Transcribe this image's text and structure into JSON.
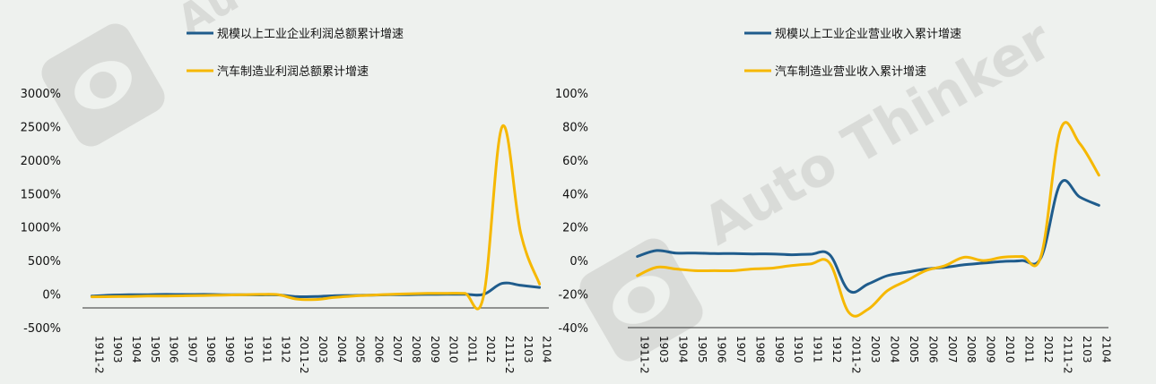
{
  "chart_data": [
    {
      "type": "line",
      "categories": [
        "1911-2",
        "1903",
        "1904",
        "1905",
        "1906",
        "1907",
        "1908",
        "1909",
        "1910",
        "1911",
        "1912",
        "2011-2",
        "2003",
        "2004",
        "2005",
        "2006",
        "2007",
        "2008",
        "2009",
        "2010",
        "2011",
        "2012",
        "2111-2",
        "2103",
        "2104"
      ],
      "ylim": [
        -500,
        3000
      ],
      "ytick_labels": [
        "3000%",
        "2500%",
        "2000%",
        "1500%",
        "1000%",
        "500%",
        "0%",
        "-500%"
      ],
      "ytick_values": [
        3000,
        2500,
        2000,
        1500,
        1000,
        500,
        0,
        -500
      ],
      "legend_position": "top-center",
      "series": [
        {
          "name": "规模以上工业企业利润总额累计增速",
          "color": "#1f5c8c",
          "values": [
            -30,
            -15,
            -10,
            -8,
            -5,
            -6,
            -5,
            -8,
            -10,
            -12,
            -12,
            -38,
            -36,
            -25,
            -20,
            -15,
            -10,
            -8,
            -5,
            -3,
            -2,
            -3,
            160,
            130,
            100
          ]
        },
        {
          "name": "汽车制造业利润总额累计增速",
          "color": "#f6b800",
          "values": [
            -40,
            -38,
            -35,
            -30,
            -28,
            -25,
            -20,
            -15,
            -10,
            -5,
            -10,
            -75,
            -80,
            -50,
            -30,
            -15,
            -5,
            5,
            10,
            12,
            10,
            -30,
            2500,
            900,
            150
          ]
        }
      ]
    },
    {
      "type": "line",
      "categories": [
        "1911-2",
        "1903",
        "1904",
        "1905",
        "1906",
        "1907",
        "1908",
        "1909",
        "1910",
        "1911",
        "1912",
        "2011-2",
        "2003",
        "2004",
        "2005",
        "2006",
        "2007",
        "2008",
        "2009",
        "2010",
        "2011",
        "2012",
        "2111-2",
        "2103",
        "2104"
      ],
      "ylim": [
        -40,
        100
      ],
      "ytick_labels": [
        "100%",
        "80%",
        "60%",
        "40%",
        "20%",
        "0%",
        "-20%",
        "-40%"
      ],
      "ytick_values": [
        100,
        80,
        60,
        40,
        20,
        0,
        -20,
        -40
      ],
      "legend_position": "top-center",
      "series": [
        {
          "name": "规模以上工业企业营业收入累计增速",
          "color": "#1f5c8c",
          "values": [
            2.5,
            6,
            4.5,
            4.5,
            4.2,
            4.2,
            4,
            4,
            3.5,
            3.8,
            3.5,
            -18,
            -14,
            -9,
            -7,
            -5,
            -4,
            -2.5,
            -1.5,
            -0.5,
            0,
            2,
            46,
            38,
            33
          ]
        },
        {
          "name": "汽车制造业营业收入累计增速",
          "color": "#f6b800",
          "values": [
            -9,
            -4,
            -5,
            -6,
            -6,
            -6,
            -5,
            -4.5,
            -3,
            -2,
            -1.5,
            -31,
            -29,
            -18,
            -12,
            -6,
            -3,
            2,
            0,
            2,
            2.5,
            3,
            78,
            70,
            51
          ]
        }
      ]
    }
  ]
}
